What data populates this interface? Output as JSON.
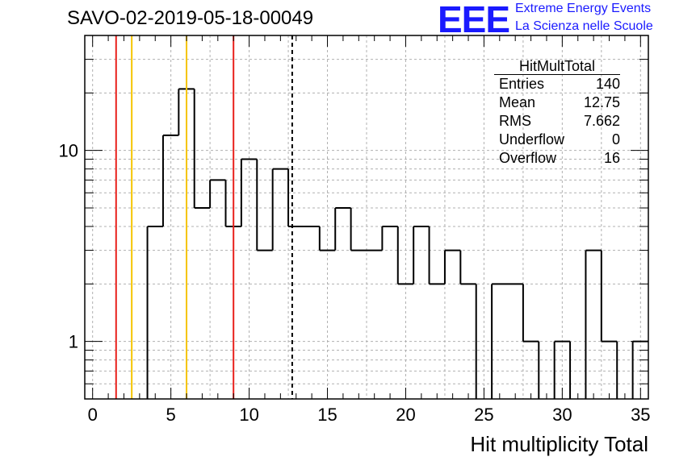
{
  "header": {
    "run_title": "SAVO-02-2019-05-18-00049",
    "logo_text": "EEE",
    "logo_line1": "Extreme Energy Events",
    "logo_line2": "La Scienza nelle Scuole"
  },
  "stats_box": {
    "name": "HitMultTotal",
    "rows": [
      {
        "label": "Entries",
        "value": "140"
      },
      {
        "label": "Mean",
        "value": "12.75"
      },
      {
        "label": "RMS",
        "value": "7.662"
      },
      {
        "label": "Underflow",
        "value": "0"
      },
      {
        "label": "Overflow",
        "value": "16"
      }
    ]
  },
  "colors": {
    "red_line": "#e8201c",
    "yellow_line": "#f5c400",
    "histogram": "#000000",
    "grid": "#b0b0b0",
    "logo": "#1a1aff"
  },
  "chart_data": {
    "type": "histogram",
    "title": "SAVO-02-2019-05-18-00049",
    "xlabel": "Hit multiplicity Total",
    "ylabel": "",
    "yscale": "log",
    "xlim": [
      -0.5,
      35.5
    ],
    "ylim": [
      0.5,
      40
    ],
    "bin_width": 1,
    "bins_x": [
      0,
      1,
      2,
      3,
      4,
      5,
      6,
      7,
      8,
      9,
      10,
      11,
      12,
      13,
      14,
      15,
      16,
      17,
      18,
      19,
      20,
      21,
      22,
      23,
      24,
      25,
      26,
      27,
      28,
      29,
      30,
      31,
      32,
      33,
      34,
      35
    ],
    "counts": [
      0,
      0,
      0,
      0,
      4,
      12,
      21,
      5,
      7,
      4,
      9,
      3,
      8,
      4,
      4,
      3,
      5,
      3,
      3,
      4,
      2,
      4,
      2,
      3,
      2,
      0,
      2,
      2,
      1,
      0,
      1,
      0,
      3,
      1,
      0,
      1
    ],
    "x_ticks": [
      0,
      5,
      10,
      15,
      20,
      25,
      30,
      35
    ],
    "x_tick_labels": [
      "0",
      "5",
      "10",
      "15",
      "20",
      "25",
      "30",
      "35"
    ],
    "y_ticks": [
      1,
      10
    ],
    "y_tick_labels": [
      "1",
      "10"
    ],
    "grid": true,
    "vertical_lines": [
      {
        "x": 1.5,
        "color": "red",
        "style": "solid"
      },
      {
        "x": 2.5,
        "color": "yellow",
        "style": "solid"
      },
      {
        "x": 6.0,
        "color": "yellow",
        "style": "solid"
      },
      {
        "x": 9.0,
        "color": "red",
        "style": "solid"
      },
      {
        "x": 12.75,
        "color": "black",
        "style": "dashed"
      }
    ]
  }
}
